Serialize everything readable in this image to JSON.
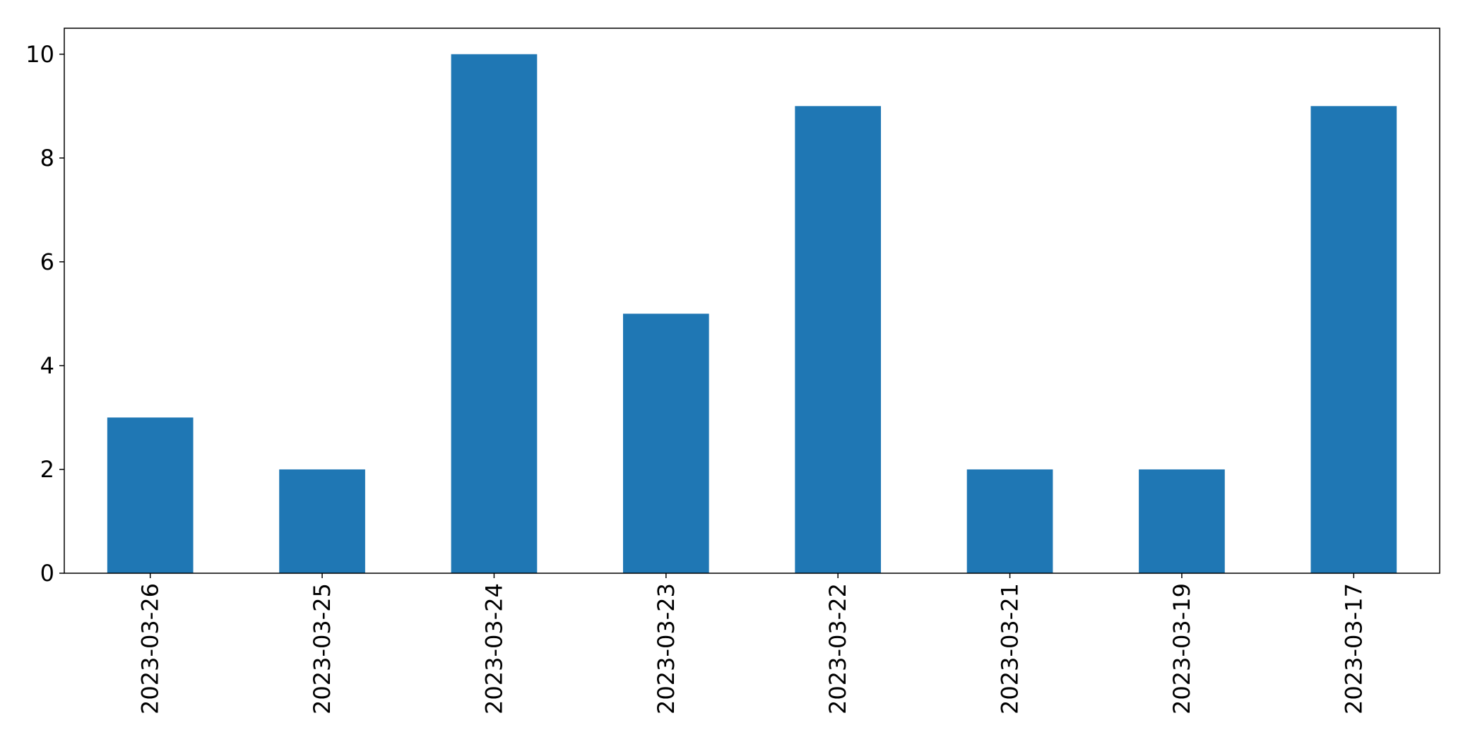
{
  "chart_data": {
    "type": "bar",
    "title": "",
    "xlabel": "",
    "ylabel": "",
    "categories": [
      "2023-03-26",
      "2023-03-25",
      "2023-03-24",
      "2023-03-23",
      "2023-03-22",
      "2023-03-21",
      "2023-03-19",
      "2023-03-17"
    ],
    "values": [
      3,
      2,
      10,
      5,
      9,
      2,
      2,
      9
    ],
    "ylim": [
      0,
      10.5
    ],
    "yticks": [
      0,
      2,
      4,
      6,
      8,
      10
    ],
    "ytick_labels": [
      "0",
      "2",
      "4",
      "6",
      "8",
      "10"
    ],
    "grid": false,
    "legend": false,
    "bar_color": "#1f77b4",
    "xtick_rotation": "vertical"
  }
}
